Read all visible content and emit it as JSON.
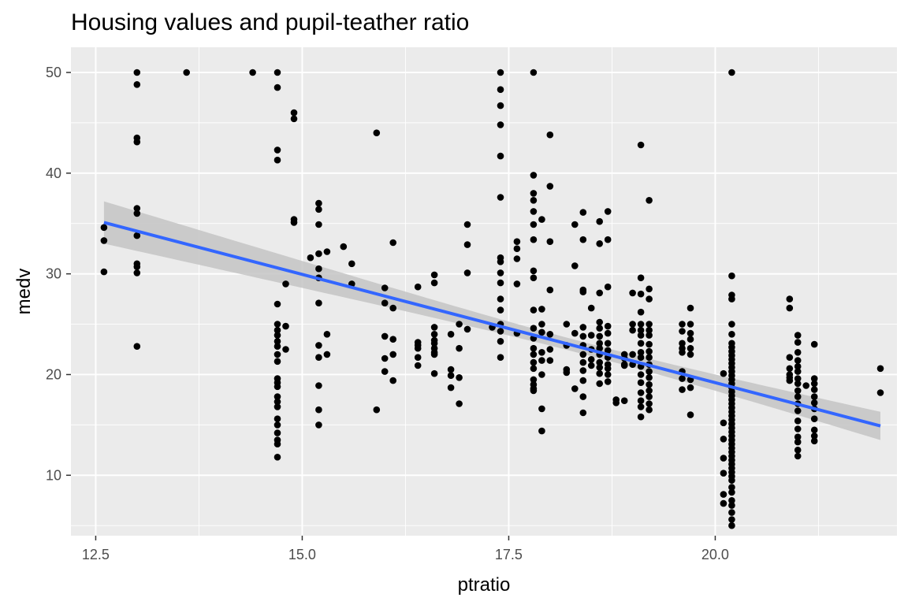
{
  "chart_data": {
    "type": "scatter",
    "title": "Housing values and pupil-teather ratio",
    "xlabel": "ptratio",
    "ylabel": "medv",
    "xlim": [
      12.2,
      22.2
    ],
    "ylim": [
      4.0,
      52.5
    ],
    "x_ticks": [
      12.5,
      15.0,
      17.5,
      20.0
    ],
    "x_tick_labels": [
      "12.5",
      "15.0",
      "17.5",
      "20.0"
    ],
    "y_ticks": [
      10,
      20,
      30,
      40,
      50
    ],
    "y_tick_labels": [
      "10",
      "20",
      "30",
      "40",
      "50"
    ],
    "grid": true,
    "colors": {
      "panel": "#ebebeb",
      "grid": "#ffffff",
      "points": "#000000",
      "fit_line": "#3366ff",
      "ribbon": "#c4c4c4"
    },
    "points": [
      [
        12.6,
        34.6
      ],
      [
        12.6,
        33.3
      ],
      [
        12.6,
        30.2
      ],
      [
        13.0,
        50.0
      ],
      [
        13.0,
        48.8
      ],
      [
        13.0,
        43.5
      ],
      [
        13.0,
        43.1
      ],
      [
        13.0,
        36.5
      ],
      [
        13.0,
        36.0
      ],
      [
        13.0,
        33.8
      ],
      [
        13.0,
        31.0
      ],
      [
        13.0,
        30.7
      ],
      [
        13.0,
        30.1
      ],
      [
        13.0,
        22.8
      ],
      [
        13.6,
        50.0
      ],
      [
        14.4,
        50.0
      ],
      [
        14.7,
        50.0
      ],
      [
        14.7,
        48.5
      ],
      [
        14.7,
        42.3
      ],
      [
        14.7,
        41.3
      ],
      [
        14.7,
        27.0
      ],
      [
        14.7,
        25.0
      ],
      [
        14.7,
        24.4
      ],
      [
        14.7,
        23.9
      ],
      [
        14.7,
        23.3
      ],
      [
        14.7,
        22.8
      ],
      [
        14.7,
        22.0
      ],
      [
        14.7,
        21.3
      ],
      [
        14.7,
        19.6
      ],
      [
        14.7,
        19.2
      ],
      [
        14.7,
        18.8
      ],
      [
        14.7,
        17.8
      ],
      [
        14.7,
        17.3
      ],
      [
        14.7,
        16.8
      ],
      [
        14.7,
        15.6
      ],
      [
        14.7,
        15.0
      ],
      [
        14.7,
        14.2
      ],
      [
        14.7,
        13.5
      ],
      [
        14.7,
        13.1
      ],
      [
        14.7,
        11.8
      ],
      [
        14.8,
        29.0
      ],
      [
        14.8,
        24.8
      ],
      [
        14.8,
        22.5
      ],
      [
        14.9,
        46.0
      ],
      [
        14.9,
        45.4
      ],
      [
        14.9,
        35.4
      ],
      [
        14.9,
        35.1
      ],
      [
        15.1,
        31.6
      ],
      [
        15.2,
        37.0
      ],
      [
        15.2,
        36.4
      ],
      [
        15.2,
        34.9
      ],
      [
        15.2,
        32.0
      ],
      [
        15.2,
        30.5
      ],
      [
        15.2,
        29.6
      ],
      [
        15.2,
        27.1
      ],
      [
        15.2,
        22.9
      ],
      [
        15.2,
        21.7
      ],
      [
        15.2,
        18.9
      ],
      [
        15.2,
        16.5
      ],
      [
        15.2,
        15.0
      ],
      [
        15.3,
        32.2
      ],
      [
        15.3,
        24.0
      ],
      [
        15.3,
        22.0
      ],
      [
        15.5,
        32.7
      ],
      [
        15.6,
        31.0
      ],
      [
        15.6,
        29.0
      ],
      [
        15.9,
        44.0
      ],
      [
        15.9,
        16.5
      ],
      [
        16.0,
        28.6
      ],
      [
        16.0,
        27.1
      ],
      [
        16.0,
        23.8
      ],
      [
        16.0,
        21.6
      ],
      [
        16.0,
        20.3
      ],
      [
        16.1,
        33.1
      ],
      [
        16.1,
        26.6
      ],
      [
        16.1,
        23.5
      ],
      [
        16.1,
        22.0
      ],
      [
        16.1,
        19.4
      ],
      [
        16.4,
        28.7
      ],
      [
        16.4,
        23.2
      ],
      [
        16.4,
        22.9
      ],
      [
        16.4,
        22.6
      ],
      [
        16.4,
        21.7
      ],
      [
        16.4,
        20.9
      ],
      [
        16.6,
        29.9
      ],
      [
        16.6,
        29.1
      ],
      [
        16.6,
        24.7
      ],
      [
        16.6,
        24.0
      ],
      [
        16.6,
        23.4
      ],
      [
        16.6,
        23.1
      ],
      [
        16.6,
        22.6
      ],
      [
        16.6,
        22.2
      ],
      [
        16.6,
        22.0
      ],
      [
        16.6,
        20.1
      ],
      [
        16.8,
        24.0
      ],
      [
        16.8,
        20.5
      ],
      [
        16.8,
        19.9
      ],
      [
        16.8,
        18.7
      ],
      [
        16.9,
        25.0
      ],
      [
        16.9,
        22.6
      ],
      [
        16.9,
        19.7
      ],
      [
        16.9,
        17.1
      ],
      [
        17.0,
        34.9
      ],
      [
        17.0,
        32.9
      ],
      [
        17.0,
        30.1
      ],
      [
        17.0,
        24.5
      ],
      [
        17.3,
        24.7
      ],
      [
        17.4,
        50.0
      ],
      [
        17.4,
        48.3
      ],
      [
        17.4,
        46.7
      ],
      [
        17.4,
        44.8
      ],
      [
        17.4,
        41.7
      ],
      [
        17.4,
        37.6
      ],
      [
        17.4,
        31.6
      ],
      [
        17.4,
        31.2
      ],
      [
        17.4,
        30.1
      ],
      [
        17.4,
        29.1
      ],
      [
        17.4,
        27.5
      ],
      [
        17.4,
        26.4
      ],
      [
        17.4,
        25.0
      ],
      [
        17.4,
        24.3
      ],
      [
        17.4,
        23.3
      ],
      [
        17.4,
        21.7
      ],
      [
        17.6,
        33.2
      ],
      [
        17.6,
        32.5
      ],
      [
        17.6,
        31.5
      ],
      [
        17.6,
        29.0
      ],
      [
        17.6,
        24.1
      ],
      [
        17.8,
        50.0
      ],
      [
        17.8,
        39.8
      ],
      [
        17.8,
        38.0
      ],
      [
        17.8,
        37.3
      ],
      [
        17.8,
        36.2
      ],
      [
        17.8,
        34.9
      ],
      [
        17.8,
        33.4
      ],
      [
        17.8,
        30.3
      ],
      [
        17.8,
        29.6
      ],
      [
        17.8,
        26.4
      ],
      [
        17.8,
        24.6
      ],
      [
        17.8,
        23.6
      ],
      [
        17.8,
        22.6
      ],
      [
        17.8,
        22.0
      ],
      [
        17.8,
        21.2
      ],
      [
        17.8,
        20.6
      ],
      [
        17.8,
        19.5
      ],
      [
        17.8,
        19.0
      ],
      [
        17.8,
        18.6
      ],
      [
        17.8,
        18.4
      ],
      [
        17.9,
        35.4
      ],
      [
        17.9,
        26.5
      ],
      [
        17.9,
        25.0
      ],
      [
        17.9,
        24.2
      ],
      [
        17.9,
        22.2
      ],
      [
        17.9,
        21.4
      ],
      [
        17.9,
        20.0
      ],
      [
        17.9,
        16.6
      ],
      [
        17.9,
        14.4
      ],
      [
        18.0,
        43.8
      ],
      [
        18.0,
        38.7
      ],
      [
        18.0,
        33.2
      ],
      [
        18.0,
        28.4
      ],
      [
        18.0,
        24.0
      ],
      [
        18.0,
        22.5
      ],
      [
        18.0,
        21.4
      ],
      [
        18.2,
        25.0
      ],
      [
        18.2,
        22.9
      ],
      [
        18.2,
        20.5
      ],
      [
        18.2,
        20.2
      ],
      [
        18.3,
        34.9
      ],
      [
        18.3,
        30.8
      ],
      [
        18.3,
        24.1
      ],
      [
        18.3,
        18.6
      ],
      [
        18.4,
        36.1
      ],
      [
        18.4,
        33.4
      ],
      [
        18.4,
        28.4
      ],
      [
        18.4,
        28.2
      ],
      [
        18.4,
        24.7
      ],
      [
        18.4,
        23.8
      ],
      [
        18.4,
        22.9
      ],
      [
        18.4,
        22.0
      ],
      [
        18.4,
        21.2
      ],
      [
        18.4,
        20.4
      ],
      [
        18.4,
        19.4
      ],
      [
        18.4,
        17.8
      ],
      [
        18.4,
        16.2
      ],
      [
        18.5,
        26.6
      ],
      [
        18.5,
        23.9
      ],
      [
        18.5,
        22.5
      ],
      [
        18.5,
        21.5
      ],
      [
        18.5,
        20.9
      ],
      [
        18.6,
        35.2
      ],
      [
        18.6,
        33.0
      ],
      [
        18.6,
        28.1
      ],
      [
        18.6,
        25.2
      ],
      [
        18.6,
        24.6
      ],
      [
        18.6,
        23.8
      ],
      [
        18.6,
        23.1
      ],
      [
        18.6,
        22.6
      ],
      [
        18.6,
        22.0
      ],
      [
        18.6,
        21.2
      ],
      [
        18.6,
        20.7
      ],
      [
        18.6,
        20.1
      ],
      [
        18.6,
        19.1
      ],
      [
        18.7,
        36.2
      ],
      [
        18.7,
        33.4
      ],
      [
        18.7,
        28.7
      ],
      [
        18.7,
        24.8
      ],
      [
        18.7,
        24.1
      ],
      [
        18.7,
        23.1
      ],
      [
        18.7,
        22.4
      ],
      [
        18.7,
        21.7
      ],
      [
        18.7,
        21.0
      ],
      [
        18.7,
        20.6
      ],
      [
        18.7,
        20.0
      ],
      [
        18.7,
        19.3
      ],
      [
        18.8,
        17.5
      ],
      [
        18.8,
        17.2
      ],
      [
        18.9,
        22.0
      ],
      [
        18.9,
        21.6
      ],
      [
        18.9,
        21.0
      ],
      [
        18.9,
        20.9
      ],
      [
        18.9,
        17.4
      ],
      [
        19.0,
        28.1
      ],
      [
        19.0,
        25.0
      ],
      [
        19.0,
        24.4
      ],
      [
        19.0,
        22.0
      ],
      [
        19.0,
        21.0
      ],
      [
        19.1,
        42.8
      ],
      [
        19.1,
        29.6
      ],
      [
        19.1,
        28.0
      ],
      [
        19.1,
        26.2
      ],
      [
        19.1,
        25.0
      ],
      [
        19.1,
        24.4
      ],
      [
        19.1,
        23.9
      ],
      [
        19.1,
        23.1
      ],
      [
        19.1,
        22.2
      ],
      [
        19.1,
        21.7
      ],
      [
        19.1,
        20.8
      ],
      [
        19.1,
        20.0
      ],
      [
        19.1,
        19.2
      ],
      [
        19.1,
        18.2
      ],
      [
        19.1,
        17.4
      ],
      [
        19.1,
        16.8
      ],
      [
        19.1,
        15.8
      ],
      [
        19.2,
        37.3
      ],
      [
        19.2,
        28.5
      ],
      [
        19.2,
        27.5
      ],
      [
        19.2,
        25.0
      ],
      [
        19.2,
        24.4
      ],
      [
        19.2,
        23.9
      ],
      [
        19.2,
        23.0
      ],
      [
        19.2,
        22.3
      ],
      [
        19.2,
        21.7
      ],
      [
        19.2,
        21.0
      ],
      [
        19.2,
        20.3
      ],
      [
        19.2,
        19.7
      ],
      [
        19.2,
        19.0
      ],
      [
        19.2,
        18.4
      ],
      [
        19.2,
        17.8
      ],
      [
        19.2,
        17.1
      ],
      [
        19.2,
        16.5
      ],
      [
        19.6,
        25.0
      ],
      [
        19.6,
        24.3
      ],
      [
        19.6,
        23.1
      ],
      [
        19.6,
        22.6
      ],
      [
        19.6,
        22.2
      ],
      [
        19.6,
        20.3
      ],
      [
        19.6,
        19.6
      ],
      [
        19.6,
        18.5
      ],
      [
        19.7,
        26.6
      ],
      [
        19.7,
        25.0
      ],
      [
        19.7,
        24.1
      ],
      [
        19.7,
        23.5
      ],
      [
        19.7,
        22.6
      ],
      [
        19.7,
        22.0
      ],
      [
        19.7,
        19.5
      ],
      [
        19.7,
        18.7
      ],
      [
        19.7,
        16.0
      ],
      [
        20.1,
        20.1
      ],
      [
        20.1,
        15.2
      ],
      [
        20.1,
        13.6
      ],
      [
        20.1,
        11.7
      ],
      [
        20.1,
        10.2
      ],
      [
        20.1,
        8.1
      ],
      [
        20.1,
        7.2
      ],
      [
        20.2,
        50.0
      ],
      [
        20.2,
        29.8
      ],
      [
        20.2,
        27.9
      ],
      [
        20.2,
        27.5
      ],
      [
        20.2,
        25.0
      ],
      [
        20.2,
        24.0
      ],
      [
        20.2,
        23.1
      ],
      [
        20.2,
        22.7
      ],
      [
        20.2,
        22.3
      ],
      [
        20.2,
        21.9
      ],
      [
        20.2,
        21.5
      ],
      [
        20.2,
        21.1
      ],
      [
        20.2,
        20.7
      ],
      [
        20.2,
        20.3
      ],
      [
        20.2,
        19.9
      ],
      [
        20.2,
        19.5
      ],
      [
        20.2,
        19.1
      ],
      [
        20.2,
        18.7
      ],
      [
        20.2,
        18.3
      ],
      [
        20.2,
        17.9
      ],
      [
        20.2,
        17.5
      ],
      [
        20.2,
        17.1
      ],
      [
        20.2,
        16.7
      ],
      [
        20.2,
        16.3
      ],
      [
        20.2,
        15.9
      ],
      [
        20.2,
        15.5
      ],
      [
        20.2,
        15.1
      ],
      [
        20.2,
        14.7
      ],
      [
        20.2,
        14.3
      ],
      [
        20.2,
        13.9
      ],
      [
        20.2,
        13.5
      ],
      [
        20.2,
        13.1
      ],
      [
        20.2,
        12.7
      ],
      [
        20.2,
        12.3
      ],
      [
        20.2,
        11.9
      ],
      [
        20.2,
        11.5
      ],
      [
        20.2,
        11.1
      ],
      [
        20.2,
        10.7
      ],
      [
        20.2,
        10.3
      ],
      [
        20.2,
        9.9
      ],
      [
        20.2,
        9.5
      ],
      [
        20.2,
        8.8
      ],
      [
        20.2,
        8.3
      ],
      [
        20.2,
        7.5
      ],
      [
        20.2,
        7.0
      ],
      [
        20.2,
        6.3
      ],
      [
        20.2,
        5.6
      ],
      [
        20.2,
        5.0
      ],
      [
        20.9,
        27.5
      ],
      [
        20.9,
        26.6
      ],
      [
        20.9,
        21.7
      ],
      [
        20.9,
        20.6
      ],
      [
        20.9,
        20.0
      ],
      [
        20.9,
        19.7
      ],
      [
        20.9,
        19.4
      ],
      [
        21.0,
        23.9
      ],
      [
        21.0,
        23.2
      ],
      [
        21.0,
        22.2
      ],
      [
        21.0,
        21.4
      ],
      [
        21.0,
        20.8
      ],
      [
        21.0,
        20.3
      ],
      [
        21.0,
        19.6
      ],
      [
        21.0,
        19.1
      ],
      [
        21.0,
        18.4
      ],
      [
        21.0,
        17.8
      ],
      [
        21.0,
        17.1
      ],
      [
        21.0,
        16.4
      ],
      [
        21.0,
        15.4
      ],
      [
        21.0,
        14.6
      ],
      [
        21.0,
        13.8
      ],
      [
        21.0,
        13.3
      ],
      [
        21.0,
        12.5
      ],
      [
        21.0,
        11.9
      ],
      [
        21.1,
        18.9
      ],
      [
        21.2,
        23.0
      ],
      [
        21.2,
        19.6
      ],
      [
        21.2,
        19.1
      ],
      [
        21.2,
        18.5
      ],
      [
        21.2,
        17.8
      ],
      [
        21.2,
        17.2
      ],
      [
        21.2,
        16.6
      ],
      [
        21.2,
        15.6
      ],
      [
        21.2,
        14.5
      ],
      [
        21.2,
        13.9
      ],
      [
        21.2,
        13.4
      ],
      [
        22.0,
        20.6
      ],
      [
        22.0,
        18.2
      ]
    ],
    "fit": {
      "method": "lm",
      "x": [
        12.6,
        22.0
      ],
      "y": [
        35.1,
        14.9
      ],
      "ribbon_upper": [
        37.2,
        16.3
      ],
      "ribbon_lower": [
        33.1,
        13.5
      ],
      "ribbon_mid_halfwidth": 0.6,
      "ribbon_mid_x": 18.5
    }
  }
}
